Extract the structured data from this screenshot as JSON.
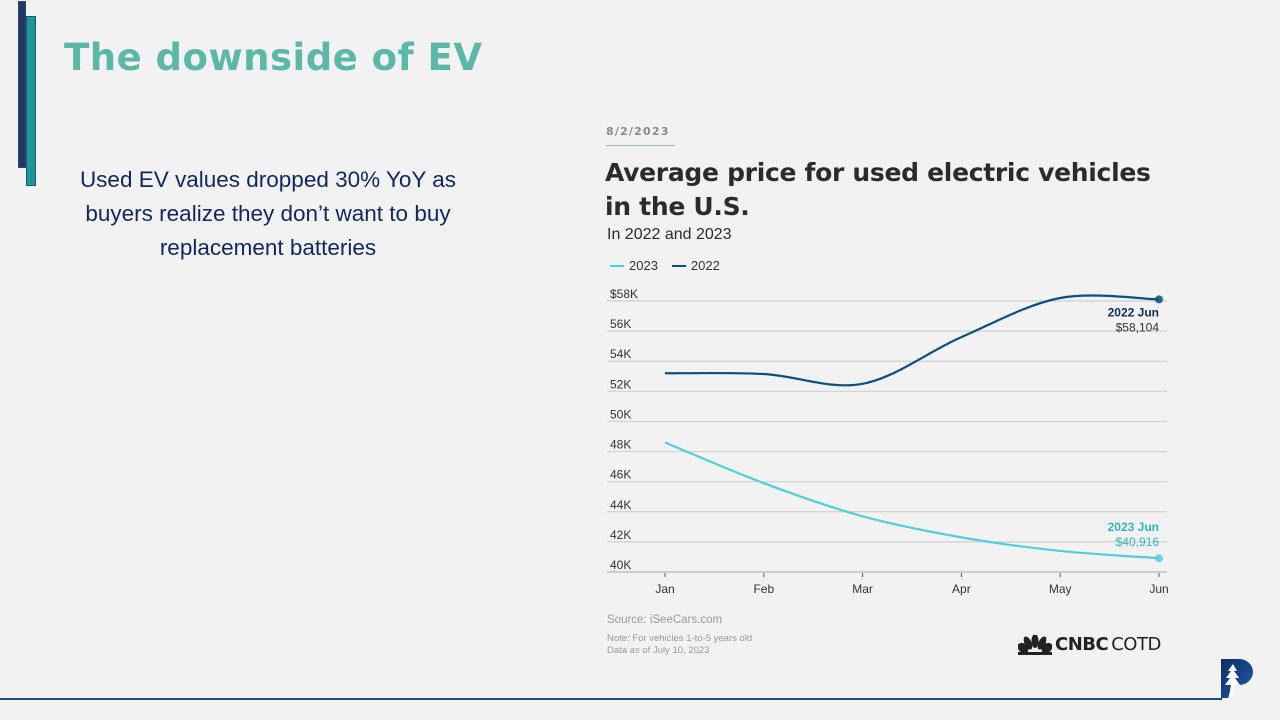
{
  "slide": {
    "title": "The downside of EV",
    "bullet": "Used EV values dropped 30% YoY as buyers realize they don’t want to buy replacement batteries"
  },
  "chart_header": {
    "date": "8/2/2023"
  },
  "footer": {
    "source": "Source: iSeeCars.com",
    "note_line1": "Note: For vehicles 1-to-5 years old",
    "note_line2": "Data as of July 10, 2023",
    "brand_bold": "CNBC",
    "brand_light": "COTD"
  },
  "colors": {
    "series_2023": "#4fcfdc",
    "series_2022": "#0b4f7c",
    "title_teal": "#5cb8a6",
    "text_navy": "#10285e"
  },
  "chart_data": {
    "type": "line",
    "title": "Average price for used electric vehicles in the U.S.",
    "subtitle": "In 2022 and 2023",
    "xlabel": "",
    "ylabel": "",
    "categories": [
      "Jan",
      "Feb",
      "Mar",
      "Apr",
      "May",
      "Jun"
    ],
    "ylim": [
      40000,
      58000
    ],
    "yticks": [
      {
        "value": 58000,
        "label": "$58K"
      },
      {
        "value": 56000,
        "label": "56K"
      },
      {
        "value": 54000,
        "label": "54K"
      },
      {
        "value": 52000,
        "label": "52K"
      },
      {
        "value": 50000,
        "label": "50K"
      },
      {
        "value": 48000,
        "label": "48K"
      },
      {
        "value": 46000,
        "label": "46K"
      },
      {
        "value": 44000,
        "label": "44K"
      },
      {
        "value": 42000,
        "label": "42K"
      },
      {
        "value": 40000,
        "label": "40K"
      }
    ],
    "grid": true,
    "legend_position": "top-left",
    "series": [
      {
        "name": "2023",
        "values": [
          48600,
          45900,
          43700,
          42300,
          41400,
          40916
        ]
      },
      {
        "name": "2022",
        "values": [
          53200,
          53150,
          52500,
          55600,
          58200,
          58104
        ]
      }
    ],
    "annotations": [
      {
        "series": "2022",
        "label": "2022 Jun",
        "value_label": "$58,104"
      },
      {
        "series": "2023",
        "label": "2023 Jun",
        "value_label": "$40,916"
      }
    ]
  }
}
